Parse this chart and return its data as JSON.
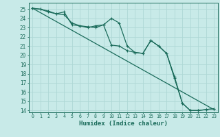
{
  "bg_color": "#c8eae8",
  "grid_color": "#aed8d5",
  "line_color": "#1a6b5a",
  "xlabel": "Humidex (Indice chaleur)",
  "xlim": [
    -0.5,
    23.5
  ],
  "ylim": [
    13.8,
    25.7
  ],
  "yticks": [
    14,
    15,
    16,
    17,
    18,
    19,
    20,
    21,
    22,
    23,
    24,
    25
  ],
  "xticks": [
    0,
    1,
    2,
    3,
    4,
    5,
    6,
    7,
    8,
    9,
    10,
    11,
    12,
    13,
    14,
    15,
    16,
    17,
    18,
    19,
    20,
    21,
    22,
    23
  ],
  "straight_line": {
    "x": [
      0,
      23
    ],
    "y": [
      25.1,
      14.1
    ]
  },
  "data_line1": {
    "x": [
      0,
      1,
      2,
      3,
      4,
      5,
      6,
      7,
      8,
      9,
      10,
      11,
      12,
      13,
      14,
      15,
      16,
      17,
      18,
      19,
      20,
      21,
      22,
      23
    ],
    "y": [
      25.1,
      25.0,
      24.7,
      24.5,
      24.7,
      23.3,
      23.2,
      23.0,
      23.2,
      23.3,
      24.0,
      23.5,
      21.0,
      20.3,
      20.2,
      21.6,
      21.0,
      20.2,
      17.7,
      14.8,
      14.0,
      14.0,
      14.1,
      14.2
    ]
  },
  "data_line2": {
    "x": [
      0,
      1,
      2,
      3,
      4,
      5,
      6,
      7,
      8,
      9,
      10,
      11,
      12,
      13,
      14,
      15,
      16,
      17,
      18,
      19,
      20,
      21,
      22,
      23
    ],
    "y": [
      25.1,
      25.0,
      24.8,
      24.5,
      24.4,
      23.5,
      23.2,
      23.1,
      23.0,
      23.3,
      21.1,
      21.0,
      20.5,
      20.3,
      20.2,
      21.6,
      21.0,
      20.2,
      17.5,
      14.8,
      14.0,
      14.0,
      14.1,
      14.2
    ]
  }
}
